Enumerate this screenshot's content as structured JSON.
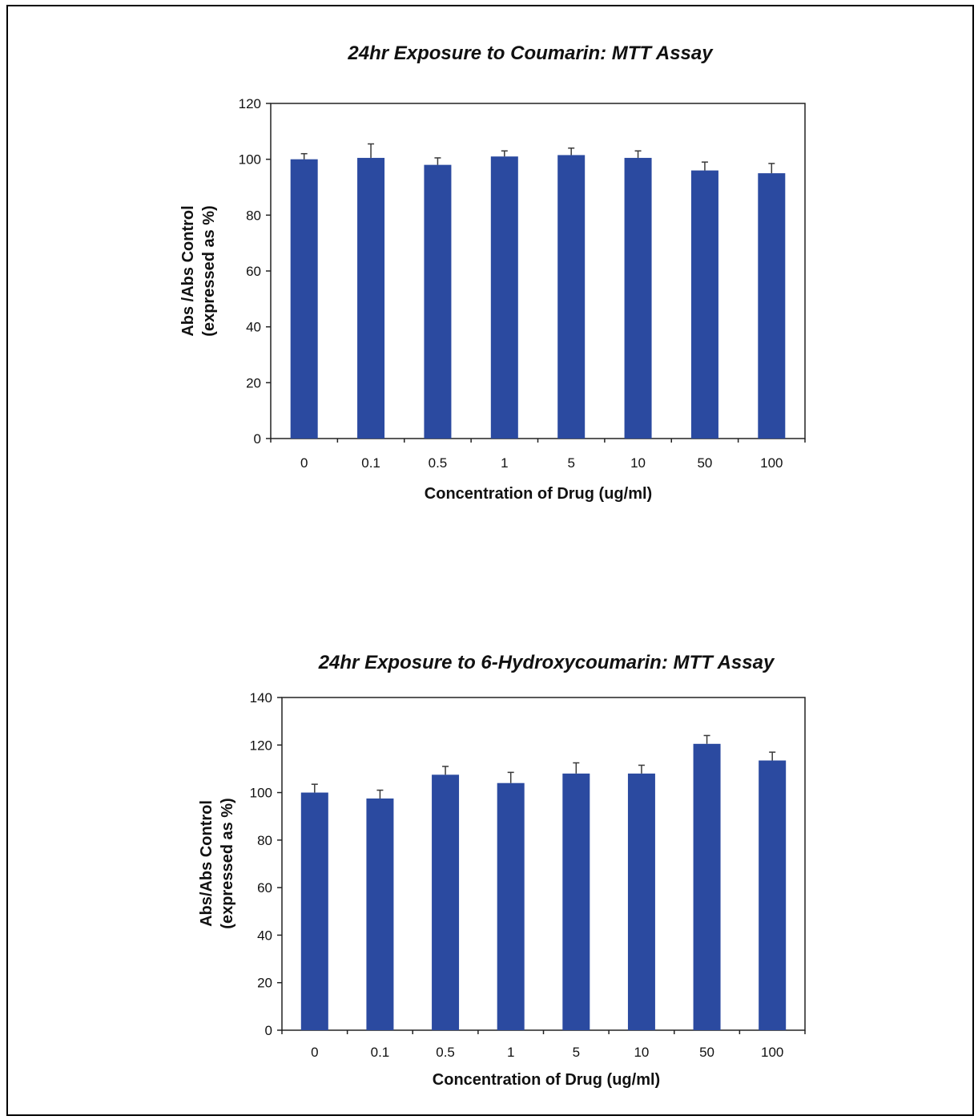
{
  "colors": {
    "bar": "#2b4aa0",
    "axis": "#222222",
    "text": "#111111"
  },
  "chart_data": [
    {
      "type": "bar",
      "title": "24hr Exposure to Coumarin: MTT Assay",
      "xlabel": "Concentration of Drug (ug/ml)",
      "ylabel_line1": "Abs /Abs Control",
      "ylabel_line2": "(expressed as %)",
      "categories": [
        "0",
        "0.1",
        "0.5",
        "1",
        "5",
        "10",
        "50",
        "100"
      ],
      "values": [
        100,
        100.5,
        98,
        101,
        101.5,
        100.5,
        96,
        95
      ],
      "errors": [
        2,
        5,
        2.5,
        2,
        2.5,
        2.5,
        3,
        3.5
      ],
      "ylim": [
        0,
        120
      ],
      "yticks": [
        "0",
        "20",
        "40",
        "60",
        "80",
        "100",
        "120"
      ],
      "grid": false,
      "legend": "none"
    },
    {
      "type": "bar",
      "title": "24hr Exposure to 6-Hydroxycoumarin: MTT Assay",
      "xlabel": "Concentration of Drug (ug/ml)",
      "ylabel_line1": "Abs/Abs Control",
      "ylabel_line2": "(expressed as %)",
      "categories": [
        "0",
        "0.1",
        "0.5",
        "1",
        "5",
        "10",
        "50",
        "100"
      ],
      "values": [
        100,
        97.5,
        107.5,
        104,
        108,
        108,
        120.5,
        113.5
      ],
      "errors": [
        3.5,
        3.5,
        3.5,
        4.5,
        4.5,
        3.5,
        3.5,
        3.5
      ],
      "ylim": [
        0,
        140
      ],
      "yticks": [
        "0",
        "20",
        "40",
        "60",
        "80",
        "100",
        "120",
        "140"
      ],
      "grid": false,
      "legend": "none"
    }
  ]
}
